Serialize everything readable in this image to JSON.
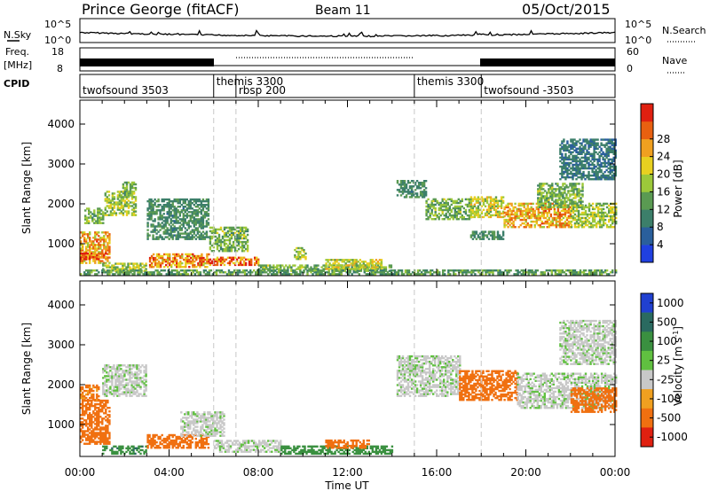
{
  "header": {
    "title": "Prince George (fitACF)",
    "beam": "Beam 11",
    "date": "05/Oct/2015"
  },
  "strips": {
    "nsky": {
      "label": "N.Sky",
      "left_ticks": [
        "10^5",
        "10^0"
      ],
      "right_ticks": [
        "10^5",
        "10^0"
      ],
      "right_label": "N.Search"
    },
    "freq": {
      "label_line1": "Freq.",
      "label_line2": "[MHz]",
      "left_ticks": [
        "18",
        "8"
      ],
      "right_ticks": [
        "60",
        "0"
      ],
      "right_label": "Nave"
    },
    "cpid": {
      "label": "CPID",
      "segments": [
        {
          "start_hour": 0,
          "name": "twofsound 3503",
          "row": 1
        },
        {
          "start_hour": 6,
          "name": "themis 3300",
          "row": 0
        },
        {
          "start_hour": 7,
          "name": "rbsp 200",
          "row": 1
        },
        {
          "start_hour": 15,
          "name": "themis 3300",
          "row": 0
        },
        {
          "start_hour": 18,
          "name": "twofsound -3503",
          "row": 1
        }
      ]
    }
  },
  "chart_data": [
    {
      "type": "heatmap",
      "name": "power",
      "ylabel": "Slant Range [km]",
      "ylim": [
        200,
        4600
      ],
      "xlim": [
        0,
        24
      ],
      "yticks": [
        1000,
        2000,
        3000,
        4000
      ],
      "colorbar": {
        "label": "Power [dB]",
        "ticks": [
          "4",
          "8",
          "12",
          "16",
          "20",
          "24",
          "28"
        ],
        "colors": [
          "#2040e0",
          "#2a5f9c",
          "#3c7f6a",
          "#5a9a52",
          "#9cc83a",
          "#e8d020",
          "#f0a020",
          "#e86010",
          "#e02010"
        ],
        "range": [
          0,
          32
        ]
      },
      "regions": [
        {
          "t0": 0.0,
          "t1": 1.3,
          "r0": 500,
          "r1": 1300,
          "value": 22
        },
        {
          "t0": 0.0,
          "t1": 1.2,
          "r0": 600,
          "r1": 780,
          "value": 28
        },
        {
          "t0": 0.2,
          "t1": 1.0,
          "r0": 1500,
          "r1": 1900,
          "value": 14
        },
        {
          "t0": 1.1,
          "t1": 2.5,
          "r0": 1700,
          "r1": 2300,
          "value": 16
        },
        {
          "t0": 1.9,
          "t1": 2.5,
          "r0": 2200,
          "r1": 2550,
          "value": 14
        },
        {
          "t0": 1.0,
          "t1": 3.0,
          "r0": 300,
          "r1": 500,
          "value": 16
        },
        {
          "t0": 3.0,
          "t1": 5.8,
          "r0": 1100,
          "r1": 2100,
          "value": 10
        },
        {
          "t0": 3.1,
          "t1": 5.8,
          "r0": 400,
          "r1": 750,
          "value": 24
        },
        {
          "t0": 5.8,
          "t1": 7.5,
          "r0": 800,
          "r1": 1400,
          "value": 14
        },
        {
          "t0": 5.8,
          "t1": 8.0,
          "r0": 450,
          "r1": 650,
          "value": 26
        },
        {
          "t0": 8.0,
          "t1": 14.0,
          "r0": 300,
          "r1": 450,
          "value": 14
        },
        {
          "t0": 9.6,
          "t1": 10.1,
          "r0": 600,
          "r1": 900,
          "value": 16
        },
        {
          "t0": 11.0,
          "t1": 13.5,
          "r0": 350,
          "r1": 600,
          "value": 18
        },
        {
          "t0": 14.2,
          "t1": 15.5,
          "r0": 2150,
          "r1": 2600,
          "value": 10
        },
        {
          "t0": 15.5,
          "t1": 17.5,
          "r0": 1600,
          "r1": 2100,
          "value": 14
        },
        {
          "t0": 17.5,
          "t1": 19.0,
          "r0": 1650,
          "r1": 2150,
          "value": 18
        },
        {
          "t0": 17.5,
          "t1": 19.0,
          "r0": 1100,
          "r1": 1300,
          "value": 10
        },
        {
          "t0": 19.0,
          "t1": 22.0,
          "r0": 1400,
          "r1": 2000,
          "value": 22
        },
        {
          "t0": 20.5,
          "t1": 22.5,
          "r0": 1900,
          "r1": 2500,
          "value": 14
        },
        {
          "t0": 22.0,
          "t1": 24.0,
          "r0": 1400,
          "r1": 2000,
          "value": 16
        },
        {
          "t0": 21.5,
          "t1": 24.0,
          "r0": 2600,
          "r1": 3600,
          "value": 8
        },
        {
          "t0": 0.0,
          "t1": 24.0,
          "r0": 220,
          "r1": 330,
          "value": 12
        }
      ]
    },
    {
      "type": "heatmap",
      "name": "velocity",
      "ylabel": "Slant Range [km]",
      "xlabel": "Time UT",
      "ylim": [
        200,
        4600
      ],
      "xlim": [
        0,
        24
      ],
      "yticks": [
        1000,
        2000,
        3000,
        4000
      ],
      "xticks": [
        "00:00",
        "04:00",
        "08:00",
        "12:00",
        "16:00",
        "20:00",
        "00:00"
      ],
      "colorbar": {
        "label": "Velocity [m s^-1]",
        "ticks": [
          "1000",
          "500",
          "100",
          "25",
          "-25",
          "-100",
          "-500",
          "-1000"
        ],
        "colors": [
          "#2040d0",
          "#2a6a60",
          "#3a9040",
          "#60c040",
          "#c8c8c8",
          "#f0a020",
          "#f07010",
          "#e02010"
        ]
      },
      "regions": [
        {
          "t0": 0.0,
          "t1": 1.3,
          "r0": 500,
          "r1": 1600,
          "value": -300
        },
        {
          "t0": 0.0,
          "t1": 0.8,
          "r0": 1600,
          "r1": 2000,
          "value": -120
        },
        {
          "t0": 1.0,
          "t1": 3.0,
          "r0": 1700,
          "r1": 2500,
          "value": 0
        },
        {
          "t0": 1.0,
          "t1": 3.0,
          "r0": 250,
          "r1": 450,
          "value": 80
        },
        {
          "t0": 3.0,
          "t1": 5.8,
          "r0": 400,
          "r1": 750,
          "value": -150
        },
        {
          "t0": 4.5,
          "t1": 6.5,
          "r0": 700,
          "r1": 1300,
          "value": 0
        },
        {
          "t0": 6.0,
          "t1": 9.0,
          "r0": 300,
          "r1": 600,
          "value": 0
        },
        {
          "t0": 9.0,
          "t1": 14.0,
          "r0": 250,
          "r1": 450,
          "value": 60
        },
        {
          "t0": 11.0,
          "t1": 13.0,
          "r0": 400,
          "r1": 600,
          "value": -150
        },
        {
          "t0": 14.2,
          "t1": 17.0,
          "r0": 1700,
          "r1": 2700,
          "value": 0
        },
        {
          "t0": 17.0,
          "t1": 19.6,
          "r0": 1600,
          "r1": 2350,
          "value": -200
        },
        {
          "t0": 19.6,
          "t1": 24.0,
          "r0": 1400,
          "r1": 2300,
          "value": 0
        },
        {
          "t0": 22.0,
          "t1": 24.0,
          "r0": 1300,
          "r1": 1900,
          "value": -150
        },
        {
          "t0": 21.5,
          "t1": 24.0,
          "r0": 2500,
          "r1": 3600,
          "value": 0
        }
      ]
    }
  ]
}
